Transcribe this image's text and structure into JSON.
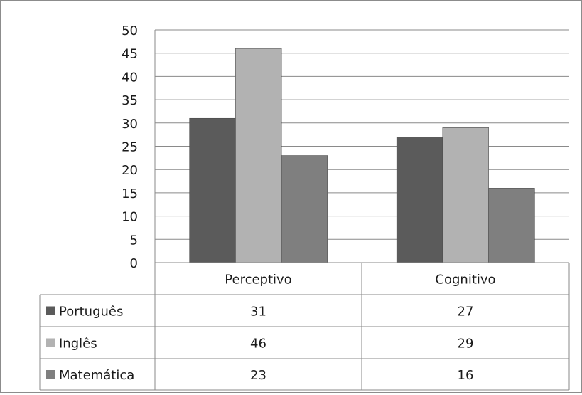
{
  "chart_data": {
    "type": "bar",
    "categories": [
      "Perceptivo",
      "Cognitivo"
    ],
    "series": [
      {
        "name": "Português",
        "values": [
          31,
          27
        ],
        "color": "#5b5b5b"
      },
      {
        "name": "Inglês",
        "values": [
          46,
          29
        ],
        "color": "#b2b2b2"
      },
      {
        "name": "Matemática",
        "values": [
          23,
          16
        ],
        "color": "#7f7f7f"
      }
    ],
    "ylim": [
      0,
      50
    ],
    "yticks": [
      0,
      5,
      10,
      15,
      20,
      25,
      30,
      35,
      40,
      45,
      50
    ],
    "grid": true,
    "data_table": true,
    "title": "",
    "xlabel": "",
    "ylabel": ""
  }
}
